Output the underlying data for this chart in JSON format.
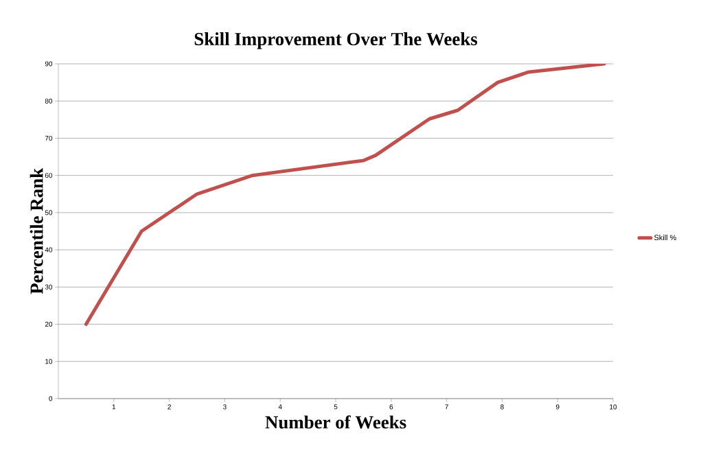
{
  "chart_data": {
    "type": "line",
    "title": "Skill Improvement Over The Weeks",
    "xlabel": "Number of Weeks",
    "ylabel": "Percentile Rank",
    "xlim": [
      0,
      10
    ],
    "xticks": [
      1,
      2,
      3,
      4,
      5,
      6,
      7,
      8,
      9,
      10
    ],
    "ylim": [
      0,
      90
    ],
    "yticks": [
      0,
      10,
      20,
      30,
      40,
      50,
      60,
      70,
      80,
      90
    ],
    "grid": "y",
    "legend": "right",
    "marker": "none",
    "line_style": "solid",
    "series": [
      {
        "name": "Skill %",
        "color": "#c0504d",
        "x": [
          0.5,
          1.5,
          2.5,
          3.5,
          5.5,
          5.72,
          6.69,
          7.2,
          7.92,
          8.48,
          9.84
        ],
        "values": [
          20,
          45,
          55,
          60,
          64,
          65.4,
          75.2,
          77.5,
          85,
          87.8,
          90
        ]
      }
    ]
  }
}
